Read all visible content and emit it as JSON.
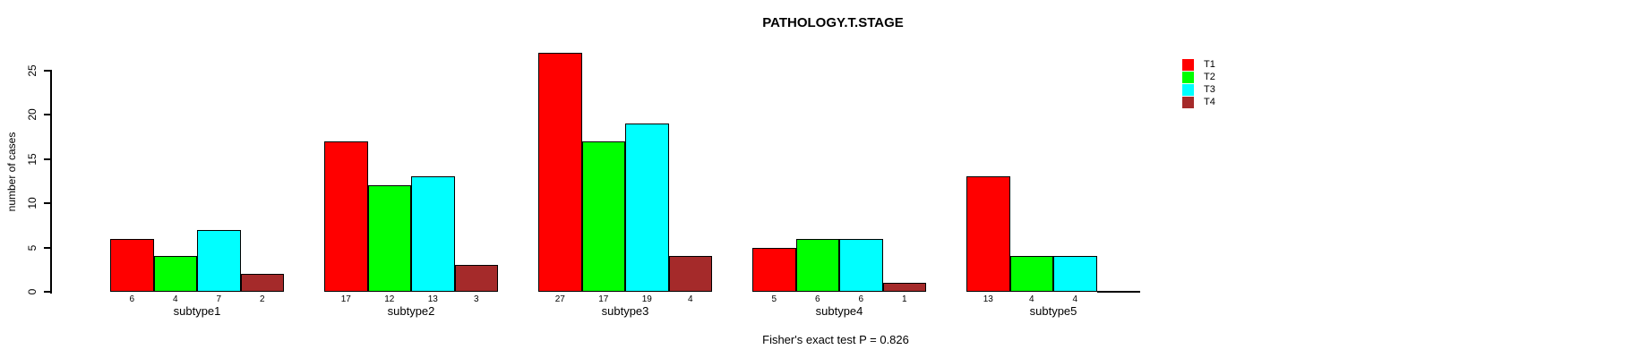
{
  "chart_data": {
    "type": "bar",
    "title": "PATHOLOGY.T.STAGE",
    "ylabel": "number of cases",
    "xlabel": "",
    "categories": [
      "subtype1",
      "subtype2",
      "subtype3",
      "subtype4",
      "subtype5"
    ],
    "series": [
      {
        "name": "T1",
        "color": "#FF0000",
        "values": [
          6,
          17,
          27,
          5,
          13
        ]
      },
      {
        "name": "T2",
        "color": "#00FF00",
        "values": [
          4,
          12,
          17,
          6,
          4
        ]
      },
      {
        "name": "T3",
        "color": "#00FFFF",
        "values": [
          7,
          13,
          19,
          6,
          4
        ]
      },
      {
        "name": "T4",
        "color": "#A52A2A",
        "values": [
          2,
          3,
          4,
          1,
          0
        ]
      }
    ],
    "yticks": [
      0,
      5,
      10,
      15,
      20,
      25
    ],
    "ylim": [
      0,
      27
    ],
    "grid": false,
    "legend_position": "top-right",
    "bar_value_labels": "below-axis, zero values unlabeled",
    "annotation": "Fisher's exact test P = 0.826"
  }
}
